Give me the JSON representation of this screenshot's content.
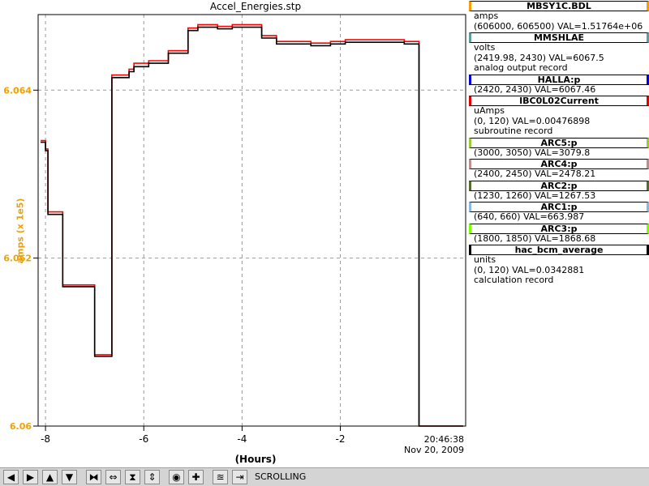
{
  "chart_data": {
    "type": "line",
    "title": "Accel_Energies.stp",
    "ylabel": "amps (x 1e5)",
    "xlabel": "(Hours)",
    "xlim": [
      -8.15,
      0.55
    ],
    "ylim": [
      6.06,
      6.0649
    ],
    "x_ticks": [
      "-8",
      "-6",
      "-4",
      "-2"
    ],
    "x_tick_values": [
      -8,
      -6,
      -4,
      -2
    ],
    "y_ticks": [
      "6.06",
      "6.062",
      "6.064"
    ],
    "y_tick_values": [
      6.06,
      6.062,
      6.064
    ],
    "time_label": "20:46:38",
    "date_label": "Nov 20, 2009",
    "grid": true,
    "series": [
      {
        "name": "MBSY1C.BDL",
        "color": "#ff0000",
        "x": [
          -8.1,
          -8.0,
          -7.95,
          -7.7,
          -7.65,
          -7.4,
          -7.35,
          -7.0,
          -6.95,
          -6.7,
          -6.65,
          -6.3,
          -6.2,
          -5.9,
          -5.5,
          -5.1,
          -4.9,
          -4.5,
          -4.2,
          -3.9,
          -3.6,
          -3.3,
          -3.0,
          -2.6,
          -2.2,
          -1.9,
          -1.3,
          -0.7,
          -0.45,
          -0.4,
          0.5
        ],
        "y": [
          6.0634,
          6.0633,
          6.06255,
          6.06255,
          6.06168,
          6.06168,
          6.06168,
          6.06085,
          6.06085,
          6.06085,
          6.06418,
          6.06425,
          6.06432,
          6.06435,
          6.06447,
          6.06474,
          6.06478,
          6.06476,
          6.06478,
          6.06478,
          6.06465,
          6.06458,
          6.06458,
          6.06456,
          6.06458,
          6.0646,
          6.0646,
          6.06458,
          6.06458,
          6.06,
          6.06
        ]
      },
      {
        "name": "hac_bcm_average",
        "color": "#000000",
        "x": [
          -8.1,
          -8.0,
          -7.95,
          -7.7,
          -7.65,
          -7.4,
          -7.35,
          -7.0,
          -6.95,
          -6.7,
          -6.65,
          -6.3,
          -6.2,
          -5.9,
          -5.5,
          -5.1,
          -4.9,
          -4.5,
          -4.2,
          -3.9,
          -3.6,
          -3.3,
          -3.0,
          -2.6,
          -2.2,
          -1.9,
          -1.3,
          -0.7,
          -0.45,
          -0.4,
          0.5
        ],
        "y": [
          6.06338,
          6.06328,
          6.06252,
          6.06252,
          6.06166,
          6.06166,
          6.06166,
          6.06083,
          6.06083,
          6.06083,
          6.06415,
          6.06422,
          6.06428,
          6.06432,
          6.06444,
          6.06471,
          6.06475,
          6.06473,
          6.06475,
          6.06475,
          6.06462,
          6.06455,
          6.06455,
          6.06453,
          6.06455,
          6.06457,
          6.06457,
          6.06455,
          6.06455,
          6.06,
          6.06
        ]
      }
    ],
    "legend": [
      {
        "name": "MBSY1C.BDL",
        "color": "#f5a000",
        "lines": [
          "amps",
          "(606000, 606500)  VAL=1.51764e+06"
        ]
      },
      {
        "name": "MMSHLAE",
        "color": "#5f9ea0",
        "lines": [
          "volts",
          "(2419.98, 2430)  VAL=6067.5",
          "analog output record"
        ]
      },
      {
        "name": "HALLA:p",
        "color": "#0000e0",
        "lines": [
          "(2420, 2430)  VAL=6067.46"
        ]
      },
      {
        "name": "IBC0L02Current",
        "color": "#e00000",
        "lines": [
          "uAmps",
          "(0, 120)  VAL=0.00476898",
          "subroutine record"
        ]
      },
      {
        "name": "ARC5:p",
        "color": "#9acd32",
        "lines": [
          "(3000, 3050)  VAL=3079.8"
        ]
      },
      {
        "name": "ARC4:p",
        "color": "#bc8f8f",
        "lines": [
          "(2400, 2450)  VAL=2478.21"
        ]
      },
      {
        "name": "ARC2:p",
        "color": "#556b2f",
        "lines": [
          "(1230, 1260)  VAL=1267.53"
        ]
      },
      {
        "name": "ARC1:p",
        "color": "#8db6e8",
        "lines": [
          "(640, 660)  VAL=663.987"
        ]
      },
      {
        "name": "ARC3:p",
        "color": "#7fff00",
        "lines": [
          "(1800, 1850)  VAL=1868.68"
        ]
      },
      {
        "name": "hac_bcm_average",
        "color": "#000000",
        "lines": [
          "units",
          "(0, 120)  VAL=0.0342881",
          "calculation record"
        ]
      }
    ]
  },
  "toolbar": {
    "buttons": [
      {
        "name": "pan-left",
        "glyph": "◀"
      },
      {
        "name": "pan-right",
        "glyph": "▶"
      },
      {
        "name": "pan-up",
        "glyph": "▲"
      },
      {
        "name": "pan-down",
        "glyph": "▼"
      },
      {
        "name": "zoom-x-in",
        "glyph": "⧓"
      },
      {
        "name": "zoom-x-out",
        "glyph": "⇔"
      },
      {
        "name": "zoom-y-in",
        "glyph": "⧗"
      },
      {
        "name": "zoom-y-out",
        "glyph": "⇕"
      },
      {
        "name": "autoscale",
        "glyph": "◉"
      },
      {
        "name": "zoom-in",
        "glyph": "✚"
      },
      {
        "name": "scroll-mode",
        "glyph": "≊"
      },
      {
        "name": "jump-end",
        "glyph": "⇥"
      }
    ],
    "status_label": "SCROLLING"
  }
}
